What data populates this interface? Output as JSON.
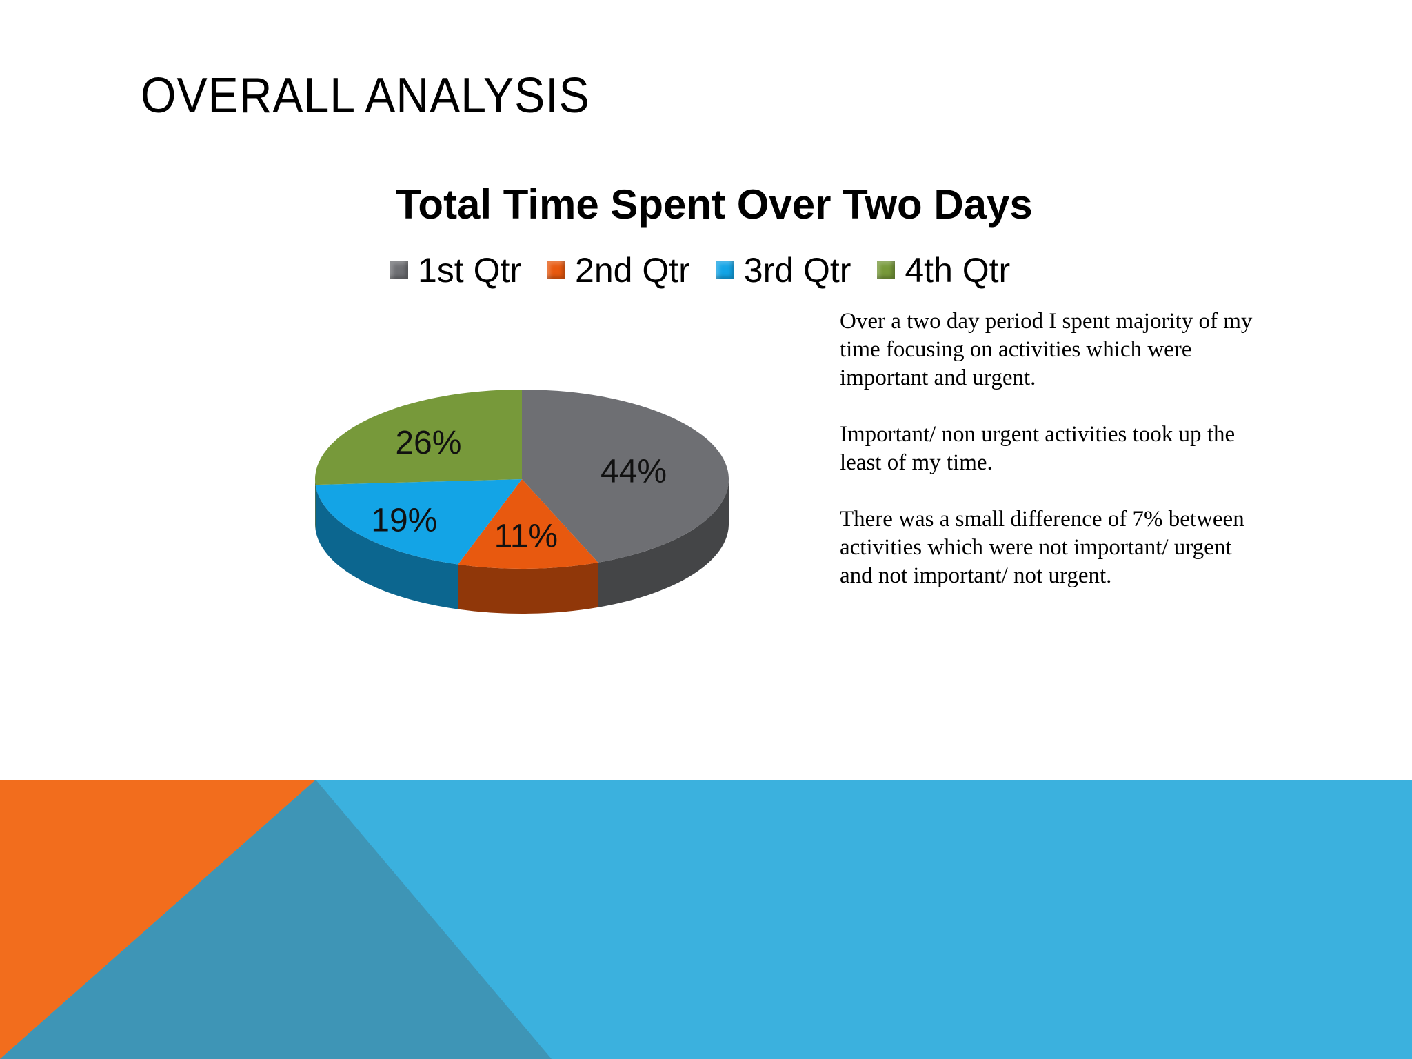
{
  "slide": {
    "title": "OVERALL ANALYSIS",
    "notes": [
      "Over a two day period I spent majority of my time focusing on activities which were important and urgent.",
      "Important/ non urgent activities took up the least of my time.",
      "There was a small difference  of 7% between activities which were not important/ urgent and not important/ not urgent."
    ]
  },
  "colors": {
    "q1": "#6e6f73",
    "q2": "#e8590f",
    "q3": "#13a4e6",
    "q4": "#77993a",
    "band_blue": "#3bb1de",
    "band_orange": "#f26d1d",
    "band_steel": "#3e95b6"
  },
  "chart_data": {
    "type": "pie",
    "title": "Total Time Spent Over Two Days",
    "categories": [
      "1st Qtr",
      "2nd Qtr",
      "3rd Qtr",
      "4th Qtr"
    ],
    "values": [
      44,
      11,
      19,
      26
    ],
    "data_labels": [
      "44%",
      "11%",
      "19%",
      "26%"
    ],
    "legend": "top",
    "style": "3d"
  }
}
